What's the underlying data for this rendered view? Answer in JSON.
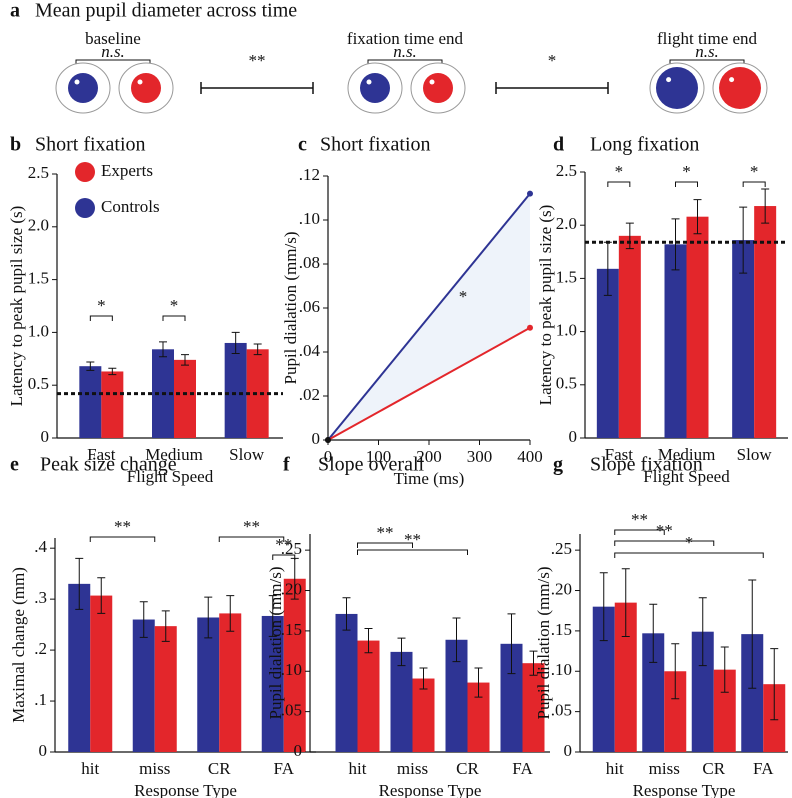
{
  "panel_a": {
    "label": "a",
    "title": "Mean pupil diameter across time",
    "stages": [
      {
        "name": "baseline",
        "note": "n.s."
      },
      {
        "name": "fixation time end",
        "note": "n.s."
      },
      {
        "name": "flight time end",
        "note": "n.s."
      }
    ],
    "comparisons": [
      "**",
      "*"
    ]
  },
  "chart_data": [
    {
      "type": "bar",
      "label": "b",
      "title": "Short fixation",
      "categories": [
        "Fast",
        "Medium",
        "Slow"
      ],
      "series": [
        {
          "name": "Controls",
          "color": "#2e3494",
          "values": [
            0.68,
            0.84,
            0.9
          ],
          "errors": [
            0.04,
            0.07,
            0.1
          ]
        },
        {
          "name": "Experts",
          "color": "#e3262b",
          "values": [
            0.63,
            0.74,
            0.84
          ],
          "errors": [
            0.03,
            0.05,
            0.05
          ]
        }
      ],
      "ylim": [
        0,
        2.5
      ],
      "yticks": [
        0,
        0.5,
        {
          "value": 1,
          "label": "1.0"
        },
        1.5,
        {
          "value": 2,
          "label": "2.0"
        },
        2.5
      ],
      "ylabel": "Latency to peak pupil size (s)",
      "xlabel": "Flight Speed",
      "reference": 0.42,
      "annotations": [
        "*",
        "*"
      ],
      "legend": "upper left"
    },
    {
      "type": "line",
      "label": "c",
      "title": "Short fixation",
      "x": [
        0,
        400
      ],
      "series": [
        {
          "color": "#2e3494",
          "values": [
            0,
            0.112
          ]
        },
        {
          "color": "#e3262b",
          "values": [
            0,
            0.051
          ]
        }
      ],
      "xlim": [
        0,
        400
      ],
      "xticks": [
        0,
        100,
        200,
        300,
        400
      ],
      "ylim": [
        0,
        0.12
      ],
      "yticks": [
        0,
        {
          "value": 0.02,
          "label": ".02"
        },
        {
          "value": 0.04,
          "label": ".04"
        },
        {
          "value": 0.06,
          "label": ".06"
        },
        {
          "value": 0.08,
          "label": ".08"
        },
        {
          "value": 0.1,
          "label": ".10"
        },
        {
          "value": 0.12,
          "label": ".12"
        }
      ],
      "xlabel": "Time (ms)",
      "ylabel": "Pupil dialation (mm/s)",
      "annotations": [
        "*"
      ]
    },
    {
      "type": "bar",
      "label": "d",
      "title": "Long fixation",
      "categories": [
        "Fast",
        "Medium",
        "Slow"
      ],
      "series": [
        {
          "color": "#2e3494",
          "values": [
            1.59,
            1.82,
            1.86
          ],
          "errors": [
            0.25,
            0.24,
            0.31
          ]
        },
        {
          "color": "#e3262b",
          "values": [
            1.9,
            2.08,
            2.18
          ],
          "errors": [
            0.12,
            0.16,
            0.16
          ]
        }
      ],
      "ylim": [
        0,
        2.5
      ],
      "yticks": [
        0,
        0.5,
        {
          "value": 1,
          "label": "1.0"
        },
        1.5,
        {
          "value": 2,
          "label": "2.0"
        },
        2.5
      ],
      "ylabel": "Latency to peak pupil size (s)",
      "xlabel": "Flight Speed",
      "reference": 1.84,
      "annotations": [
        "*",
        "*",
        "*"
      ]
    },
    {
      "type": "bar",
      "label": "e",
      "title": "Peak size change",
      "categories": [
        "hit",
        "miss",
        "CR",
        "FA"
      ],
      "series": [
        {
          "color": "#2e3494",
          "values": [
            0.33,
            0.26,
            0.264,
            0.267
          ],
          "errors": [
            0.05,
            0.035,
            0.04,
            0.04
          ]
        },
        {
          "color": "#e3262b",
          "values": [
            0.307,
            0.247,
            0.272,
            0.34
          ],
          "errors": [
            0.035,
            0.03,
            0.035,
            0.04
          ]
        }
      ],
      "ylim": [
        0,
        0.42
      ],
      "yticks": [
        0,
        {
          "value": 0.1,
          "label": ".1"
        },
        {
          "value": 0.2,
          "label": ".2"
        },
        {
          "value": 0.3,
          "label": ".3"
        },
        {
          "value": 0.4,
          "label": ".4"
        }
      ],
      "ylabel": "Maximal change (mm)",
      "xlabel": "Response Type",
      "annotations": [
        "**",
        "**",
        "**"
      ]
    },
    {
      "type": "bar",
      "label": "f",
      "title": "Slope overall",
      "categories": [
        "hit",
        "miss",
        "CR",
        "FA"
      ],
      "series": [
        {
          "color": "#2e3494",
          "values": [
            0.171,
            0.124,
            0.139,
            0.134
          ],
          "errors": [
            0.02,
            0.017,
            0.027,
            0.037
          ]
        },
        {
          "color": "#e3262b",
          "values": [
            0.138,
            0.091,
            0.086,
            0.11
          ],
          "errors": [
            0.015,
            0.013,
            0.018,
            0.015
          ]
        }
      ],
      "ylim": [
        0,
        0.27
      ],
      "yticks": [
        0,
        {
          "value": 0.05,
          "label": ".05"
        },
        {
          "value": 0.1,
          "label": ".10"
        },
        {
          "value": 0.15,
          "label": ".15"
        },
        {
          "value": 0.2,
          "label": ".20"
        },
        {
          "value": 0.25,
          "label": ".25"
        }
      ],
      "ylabel": "Pupil dialation (mm/s)",
      "xlabel": "Response Type",
      "annotations": [
        "**",
        "**"
      ]
    },
    {
      "type": "bar",
      "label": "g",
      "title": "Slope fixation",
      "categories": [
        "hit",
        "miss",
        "CR",
        "FA"
      ],
      "series": [
        {
          "color": "#2e3494",
          "values": [
            0.18,
            0.147,
            0.149,
            0.146
          ],
          "errors": [
            0.042,
            0.036,
            0.042,
            0.067
          ]
        },
        {
          "color": "#e3262b",
          "values": [
            0.185,
            0.1,
            0.102,
            0.084
          ],
          "errors": [
            0.042,
            0.034,
            0.028,
            0.044
          ]
        }
      ],
      "ylim": [
        0,
        0.27
      ],
      "yticks": [
        0,
        {
          "value": 0.05,
          "label": ".05"
        },
        {
          "value": 0.1,
          "label": ".10"
        },
        {
          "value": 0.15,
          "label": ".15"
        },
        {
          "value": 0.2,
          "label": ".20"
        },
        {
          "value": 0.25,
          "label": ".25"
        }
      ],
      "ylabel": "Pupil dialation (mm/s)",
      "xlabel": "Response Type",
      "annotations": [
        "**",
        "**",
        "*"
      ]
    }
  ]
}
